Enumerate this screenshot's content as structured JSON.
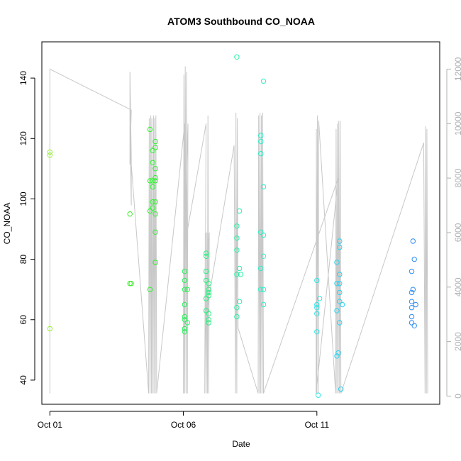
{
  "chart_data": {
    "type": "scatter",
    "title": "ATOM3 Southbound CO_NOAA",
    "xlabel": "Date",
    "ylabel": "CO_NOAA",
    "x_unit": "days after Oct 01",
    "x_ticks": [
      {
        "value": 0,
        "label": "Oct 01"
      },
      {
        "value": 5,
        "label": "Oct 06"
      },
      {
        "value": 10,
        "label": "Oct 11"
      }
    ],
    "xlim": [
      -0.3,
      14.6
    ],
    "ylim": [
      32,
      152
    ],
    "y_ticks": [
      40,
      60,
      80,
      100,
      120,
      140
    ],
    "y2lim": [
      -300,
      13000
    ],
    "y2_ticks": [
      0,
      2000,
      4000,
      6000,
      8000,
      10000,
      12000
    ],
    "altitude_color": "#c8c8c8",
    "series": [
      {
        "color": "#9aef3c",
        "points": [
          [
            0,
            115.5
          ],
          [
            0,
            114.5
          ],
          [
            0,
            57
          ]
        ]
      },
      {
        "color": "#3cef2a",
        "points": [
          [
            3.0,
            95
          ],
          [
            3.0,
            72
          ],
          [
            3.05,
            72
          ]
        ]
      },
      {
        "color": "#2ef02e",
        "points": [
          [
            3.75,
            123
          ],
          [
            3.75,
            106
          ],
          [
            3.75,
            96
          ],
          [
            3.75,
            70
          ],
          [
            3.85,
            116
          ],
          [
            3.85,
            112
          ],
          [
            3.85,
            106
          ],
          [
            3.85,
            104
          ],
          [
            3.85,
            99
          ],
          [
            3.85,
            97
          ],
          [
            3.95,
            119
          ],
          [
            3.95,
            117
          ],
          [
            3.95,
            110
          ],
          [
            3.95,
            107
          ],
          [
            3.95,
            106
          ],
          [
            3.95,
            99
          ],
          [
            3.95,
            95
          ],
          [
            3.95,
            89
          ],
          [
            3.95,
            79
          ]
        ]
      },
      {
        "color": "#2af05a",
        "points": [
          [
            5.05,
            76
          ],
          [
            5.05,
            73
          ],
          [
            5.05,
            70
          ],
          [
            5.05,
            65
          ],
          [
            5.05,
            61
          ],
          [
            5.05,
            60
          ],
          [
            5.05,
            57
          ],
          [
            5.05,
            56
          ],
          [
            5.15,
            70
          ],
          [
            5.15,
            59
          ]
        ]
      },
      {
        "color": "#2af080",
        "points": [
          [
            5.85,
            82
          ],
          [
            5.85,
            81
          ],
          [
            5.85,
            76
          ],
          [
            5.85,
            73
          ],
          [
            5.85,
            67
          ],
          [
            5.85,
            63
          ],
          [
            5.95,
            72
          ],
          [
            5.95,
            70
          ],
          [
            5.95,
            69
          ],
          [
            5.95,
            68
          ],
          [
            5.95,
            62
          ],
          [
            5.95,
            60
          ],
          [
            5.95,
            59
          ]
        ]
      },
      {
        "color": "#2af0a6",
        "points": [
          [
            7.0,
            147
          ],
          [
            7.0,
            91
          ],
          [
            7.0,
            87
          ],
          [
            7.0,
            83
          ],
          [
            7.0,
            75
          ],
          [
            7.0,
            64
          ],
          [
            7.0,
            61
          ],
          [
            7.1,
            96
          ],
          [
            7.1,
            77
          ],
          [
            7.1,
            66
          ],
          [
            7.15,
            75
          ]
        ]
      },
      {
        "color": "#2af0c8",
        "points": [
          [
            7.9,
            121
          ],
          [
            7.9,
            119
          ],
          [
            7.9,
            115
          ],
          [
            7.9,
            89
          ],
          [
            7.9,
            77
          ],
          [
            7.9,
            70
          ],
          [
            8.0,
            139
          ],
          [
            8.0,
            104
          ],
          [
            8.0,
            88
          ],
          [
            8.0,
            81
          ],
          [
            8.0,
            70
          ],
          [
            8.0,
            65
          ]
        ]
      },
      {
        "color": "#2ae8e8",
        "points": [
          [
            10.0,
            73
          ],
          [
            10.0,
            65
          ],
          [
            10.0,
            64
          ],
          [
            10.0,
            62
          ],
          [
            10.0,
            56
          ],
          [
            10.05,
            35
          ],
          [
            10.1,
            67
          ]
        ]
      },
      {
        "color": "#2ad2f0",
        "points": [
          [
            10.75,
            79
          ],
          [
            10.75,
            72
          ],
          [
            10.75,
            63
          ],
          [
            10.75,
            48
          ],
          [
            10.8,
            49
          ],
          [
            10.85,
            86
          ],
          [
            10.85,
            84
          ],
          [
            10.85,
            75
          ],
          [
            10.85,
            72
          ],
          [
            10.85,
            69
          ],
          [
            10.85,
            66
          ],
          [
            10.85,
            59
          ],
          [
            10.9,
            37
          ],
          [
            10.95,
            65
          ]
        ]
      },
      {
        "color": "#2a8cf0",
        "points": [
          [
            13.55,
            76
          ],
          [
            13.55,
            69
          ],
          [
            13.55,
            66
          ],
          [
            13.55,
            64
          ],
          [
            13.55,
            61
          ],
          [
            13.55,
            59
          ],
          [
            13.6,
            86
          ],
          [
            13.6,
            70
          ],
          [
            13.65,
            80
          ],
          [
            13.65,
            58
          ],
          [
            13.7,
            65
          ]
        ]
      }
    ],
    "altitude_series": {
      "axis": "right",
      "x": [
        0,
        0,
        3.05,
        3.0,
        3.0,
        3.05,
        3.05,
        3.0,
        3.05,
        3.7,
        3.72,
        3.75,
        3.78,
        3.8,
        3.82,
        3.85,
        3.88,
        3.9,
        3.92,
        3.95,
        3.97,
        4.0,
        5.05,
        5.0,
        5.02,
        5.05,
        5.07,
        5.1,
        5.12,
        5.15,
        5.17,
        5.05,
        5.85,
        5.8,
        5.82,
        5.85,
        5.88,
        5.9,
        5.92,
        5.95,
        5.97,
        5.85,
        6.9,
        6.95,
        6.97,
        7.0,
        7.02,
        7.05,
        7.8,
        7.82,
        7.85,
        7.87,
        7.9,
        7.92,
        7.95,
        7.97,
        8.0,
        10.8,
        9.97,
        9.98,
        10.0,
        10.02,
        10.05,
        10.07,
        10.7,
        10.72,
        10.75,
        10.77,
        10.8,
        10.82,
        10.85,
        10.87,
        10.9,
        14.0,
        14.05,
        14.07,
        14.1,
        14.12,
        14.15
      ],
      "y": [
        100,
        12000,
        10500,
        8500,
        11900,
        8800,
        7000,
        10000,
        8500,
        100,
        10200,
        100,
        10300,
        100,
        10200,
        100,
        10300,
        100,
        10200,
        100,
        10300,
        100,
        10000,
        100,
        11800,
        100,
        12100,
        100,
        11900,
        100,
        10000,
        5500,
        10000,
        100,
        6000,
        100,
        6000,
        100,
        10300,
        100,
        6000,
        3000,
        9200,
        100,
        10400,
        100,
        10200,
        2500,
        100,
        10300,
        100,
        10400,
        100,
        10300,
        100,
        10400,
        100,
        8000,
        100,
        9800,
        100,
        10300,
        100,
        10100,
        100,
        9800,
        100,
        10000,
        100,
        10100,
        100,
        10100,
        100,
        9300,
        100,
        9900,
        100,
        9800,
        100
      ]
    }
  }
}
